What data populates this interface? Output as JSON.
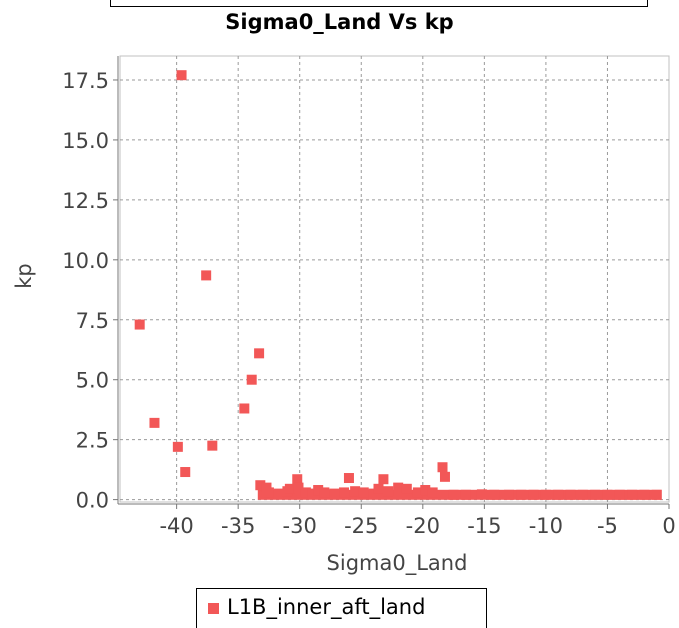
{
  "chart_data": {
    "type": "scatter",
    "title": "Sigma0_Land Vs kp",
    "xlabel": "Sigma0_Land",
    "ylabel": "kp",
    "xlim": [
      -44.6,
      0
    ],
    "ylim": [
      -0.1,
      18.5
    ],
    "xticks": [
      -40,
      -35,
      -30,
      -25,
      -20,
      -15,
      -10,
      -5,
      0
    ],
    "yticks": [
      0.0,
      2.5,
      5.0,
      7.5,
      10.0,
      12.5,
      15.0,
      17.5
    ],
    "xtick_labels": [
      "-40",
      "-35",
      "-30",
      "-25",
      "-20",
      "-15",
      "-10",
      "-5",
      "0"
    ],
    "ytick_labels": [
      "0.0",
      "2.5",
      "5.0",
      "7.5",
      "10.0",
      "12.5",
      "15.0",
      "17.5"
    ],
    "grid": true,
    "legend_position": "bottom",
    "series": [
      {
        "name": "L1B_inner_aft_land",
        "color": "#f25757",
        "marker": "square",
        "points": [
          [
            -39.6,
            17.7
          ],
          [
            -37.6,
            9.35
          ],
          [
            -43.0,
            7.3
          ],
          [
            -33.3,
            6.1
          ],
          [
            -33.9,
            5.0
          ],
          [
            -34.5,
            3.8
          ],
          [
            -41.8,
            3.2
          ],
          [
            -37.1,
            2.25
          ],
          [
            -39.9,
            2.2
          ],
          [
            -39.3,
            1.15
          ],
          [
            -33.2,
            0.6
          ],
          [
            -32.7,
            0.5
          ],
          [
            -32.5,
            0.3
          ],
          [
            -31.7,
            0.25
          ],
          [
            -31.0,
            0.35
          ],
          [
            -30.8,
            0.45
          ],
          [
            -30.2,
            0.85
          ],
          [
            -30.1,
            0.5
          ],
          [
            -29.5,
            0.3
          ],
          [
            -29.0,
            0.25
          ],
          [
            -28.5,
            0.4
          ],
          [
            -28.0,
            0.3
          ],
          [
            -27.2,
            0.25
          ],
          [
            -26.4,
            0.3
          ],
          [
            -26.0,
            0.9
          ],
          [
            -25.5,
            0.35
          ],
          [
            -24.8,
            0.3
          ],
          [
            -24.0,
            0.25
          ],
          [
            -23.6,
            0.45
          ],
          [
            -23.2,
            0.85
          ],
          [
            -22.8,
            0.35
          ],
          [
            -22.0,
            0.5
          ],
          [
            -21.3,
            0.45
          ],
          [
            -20.4,
            0.3
          ],
          [
            -19.8,
            0.4
          ],
          [
            -19.2,
            0.3
          ],
          [
            -18.4,
            1.35
          ],
          [
            -18.2,
            0.95
          ],
          [
            -17.5,
            0.2
          ],
          [
            -16.5,
            0.2
          ],
          [
            -15.2,
            0.22
          ],
          [
            -14.2,
            0.2
          ],
          [
            -13.0,
            0.2
          ],
          [
            -12.0,
            0.2
          ],
          [
            -11.0,
            0.2
          ],
          [
            -10.0,
            0.2
          ],
          [
            -9.0,
            0.2
          ],
          [
            -8.0,
            0.2
          ],
          [
            -7.0,
            0.2
          ],
          [
            -6.0,
            0.2
          ],
          [
            -5.0,
            0.2
          ],
          [
            -4.0,
            0.2
          ],
          [
            -3.0,
            0.2
          ],
          [
            -2.0,
            0.2
          ],
          [
            -1.0,
            0.2
          ]
        ],
        "band": {
          "x_from": -33.0,
          "x_to": -1.0,
          "y": 0.2
        }
      }
    ]
  }
}
